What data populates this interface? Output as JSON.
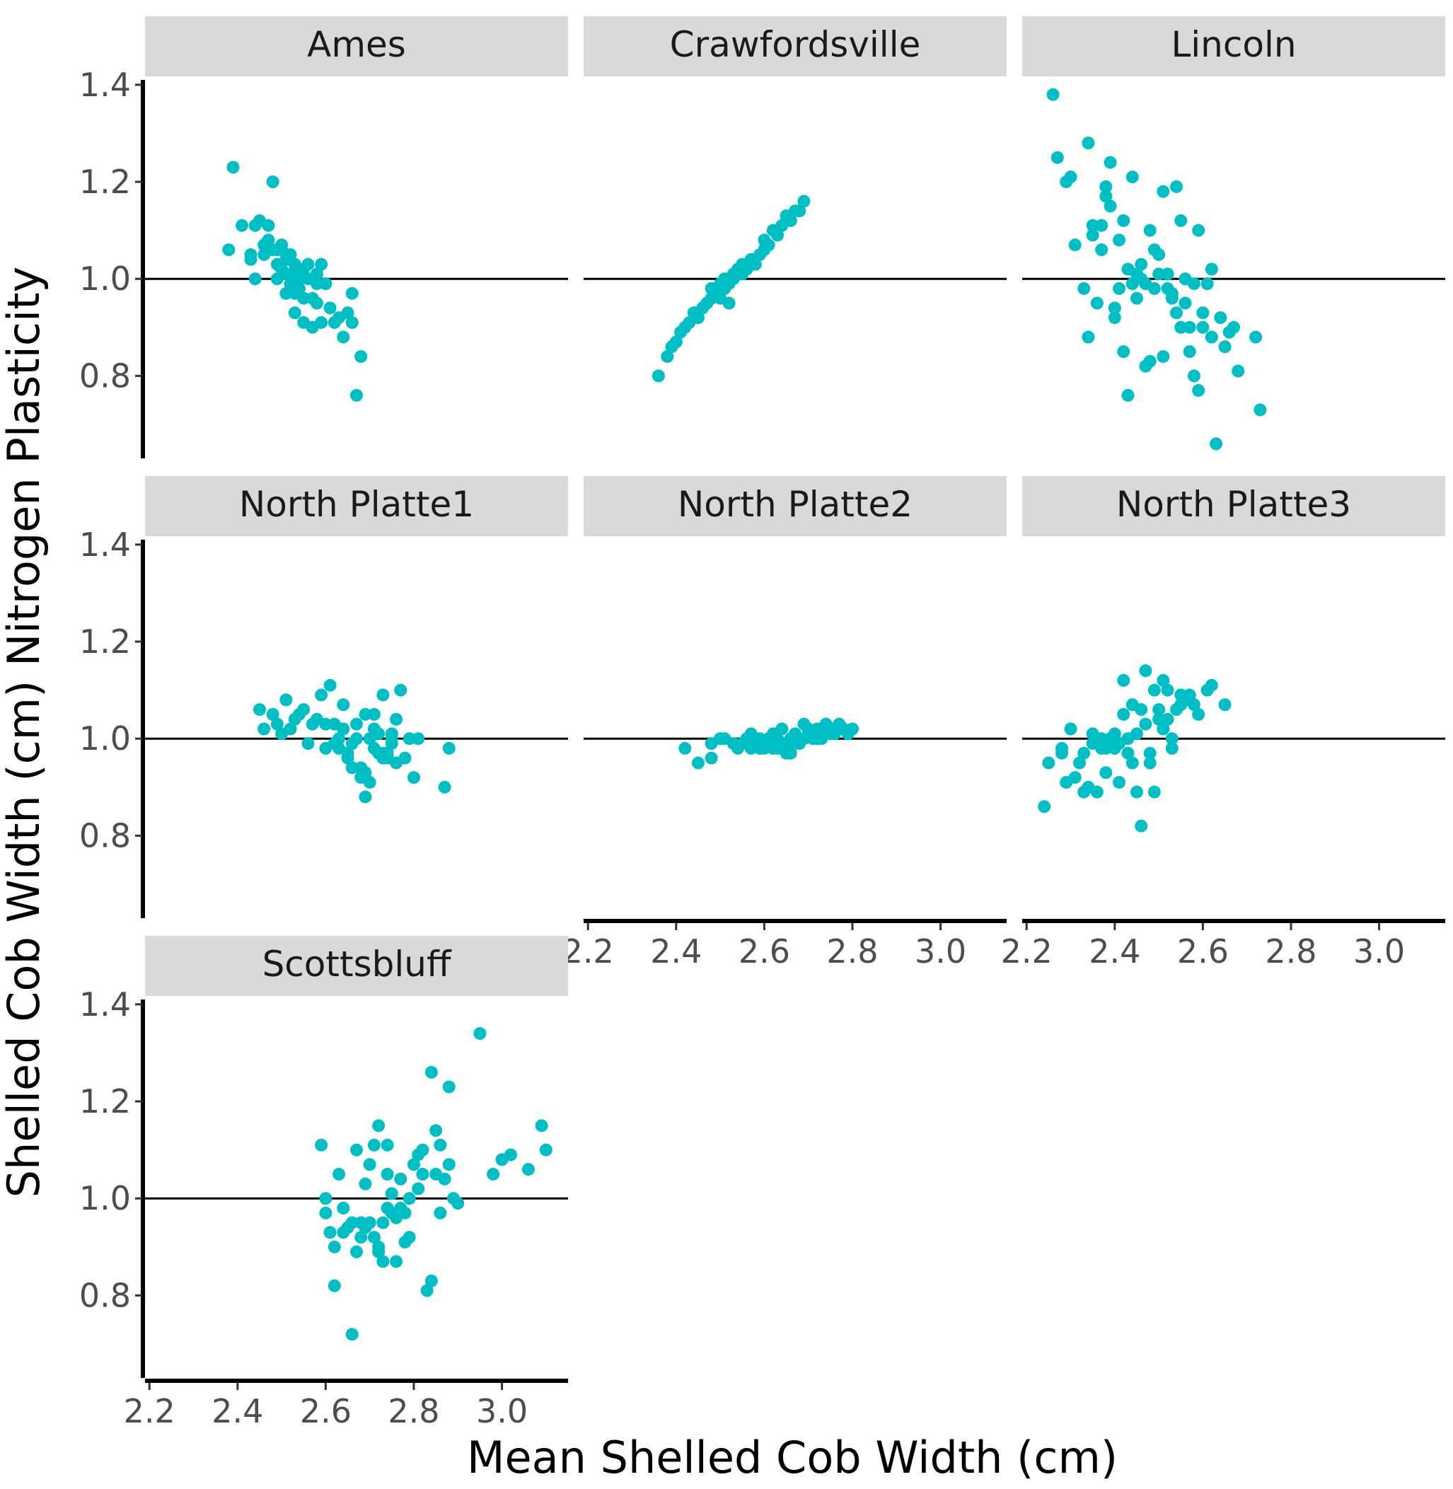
{
  "chart_data": {
    "type": "scatter",
    "xlabel": "Mean Shelled Cob Width (cm)",
    "ylabel": "Shelled Cob Width (cm) Nitrogen Plasticity",
    "xlim": [
      2.19,
      3.15
    ],
    "ylim": [
      0.63,
      1.41
    ],
    "x_ticks": [
      "2.2",
      "2.4",
      "2.6",
      "2.8",
      "3.0"
    ],
    "y_ticks": [
      "0.8",
      "1.0",
      "1.2",
      "1.4"
    ],
    "reference_line_y": 1.0,
    "point_color": "#00bfc4",
    "grid": false,
    "panels": [
      {
        "name": "Ames",
        "x": [
          2.38,
          2.39,
          2.41,
          2.43,
          2.43,
          2.44,
          2.44,
          2.45,
          2.46,
          2.46,
          2.47,
          2.47,
          2.48,
          2.48,
          2.49,
          2.49,
          2.49,
          2.5,
          2.5,
          2.5,
          2.51,
          2.51,
          2.51,
          2.52,
          2.52,
          2.52,
          2.53,
          2.53,
          2.53,
          2.54,
          2.54,
          2.54,
          2.55,
          2.55,
          2.55,
          2.56,
          2.56,
          2.57,
          2.57,
          2.58,
          2.58,
          2.58,
          2.59,
          2.59,
          2.6,
          2.61,
          2.62,
          2.63,
          2.64,
          2.65,
          2.66,
          2.66,
          2.67,
          2.68
        ],
        "y": [
          1.06,
          1.23,
          1.11,
          1.04,
          1.05,
          1.0,
          1.11,
          1.12,
          1.05,
          1.07,
          1.08,
          1.11,
          1.06,
          1.2,
          1.06,
          1.03,
          1.0,
          1.02,
          1.07,
          1.06,
          1.04,
          0.97,
          1.01,
          1.01,
          0.99,
          1.05,
          1.03,
          0.93,
          0.97,
          1.0,
          1.02,
          0.98,
          1.02,
          0.96,
          0.91,
          1.0,
          1.03,
          0.96,
          0.9,
          1.01,
          0.95,
          0.99,
          1.03,
          0.91,
          0.99,
          0.94,
          0.91,
          0.92,
          0.88,
          0.93,
          0.97,
          0.91,
          0.76,
          0.84
        ]
      },
      {
        "name": "Crawfordsville",
        "x": [
          2.36,
          2.38,
          2.39,
          2.4,
          2.41,
          2.42,
          2.43,
          2.44,
          2.45,
          2.46,
          2.47,
          2.48,
          2.48,
          2.49,
          2.5,
          2.5,
          2.51,
          2.51,
          2.52,
          2.52,
          2.53,
          2.53,
          2.54,
          2.55,
          2.55,
          2.56,
          2.57,
          2.58,
          2.59,
          2.6,
          2.6,
          2.61,
          2.62,
          2.63,
          2.64,
          2.65,
          2.66,
          2.67,
          2.68,
          2.69
        ],
        "y": [
          0.8,
          0.84,
          0.86,
          0.87,
          0.89,
          0.9,
          0.91,
          0.93,
          0.92,
          0.94,
          0.95,
          0.96,
          0.98,
          0.97,
          0.99,
          0.96,
          0.98,
          1.0,
          0.99,
          0.95,
          1.01,
          1.0,
          1.02,
          1.03,
          1.01,
          1.02,
          1.04,
          1.03,
          1.05,
          1.06,
          1.08,
          1.07,
          1.1,
          1.09,
          1.11,
          1.13,
          1.12,
          1.14,
          1.14,
          1.16
        ]
      },
      {
        "name": "Lincoln",
        "x": [
          2.26,
          2.27,
          2.29,
          2.3,
          2.31,
          2.33,
          2.34,
          2.34,
          2.35,
          2.35,
          2.36,
          2.37,
          2.37,
          2.38,
          2.38,
          2.39,
          2.39,
          2.4,
          2.4,
          2.41,
          2.41,
          2.42,
          2.42,
          2.43,
          2.43,
          2.44,
          2.44,
          2.45,
          2.45,
          2.46,
          2.46,
          2.47,
          2.47,
          2.48,
          2.48,
          2.49,
          2.49,
          2.5,
          2.5,
          2.51,
          2.51,
          2.52,
          2.52,
          2.53,
          2.53,
          2.54,
          2.54,
          2.55,
          2.55,
          2.56,
          2.56,
          2.57,
          2.57,
          2.58,
          2.58,
          2.59,
          2.59,
          2.6,
          2.6,
          2.61,
          2.62,
          2.62,
          2.63,
          2.64,
          2.65,
          2.66,
          2.67,
          2.68,
          2.72,
          2.73
        ],
        "y": [
          1.38,
          1.25,
          1.2,
          1.21,
          1.07,
          0.98,
          0.88,
          1.28,
          1.09,
          1.11,
          0.95,
          1.11,
          1.06,
          1.17,
          1.19,
          1.15,
          1.24,
          0.92,
          0.94,
          1.08,
          0.98,
          1.12,
          0.85,
          0.76,
          1.02,
          1.21,
          0.99,
          0.96,
          1.01,
          1.03,
          1.0,
          0.82,
          0.99,
          0.83,
          1.1,
          0.98,
          1.06,
          1.05,
          1.01,
          1.18,
          0.84,
          0.98,
          1.01,
          0.97,
          0.96,
          0.93,
          1.19,
          0.9,
          1.12,
          0.95,
          1.0,
          0.9,
          0.85,
          0.99,
          0.8,
          1.1,
          0.77,
          0.93,
          0.9,
          0.99,
          0.88,
          1.02,
          0.66,
          0.92,
          0.86,
          0.89,
          0.9,
          0.81,
          0.88,
          0.73
        ]
      },
      {
        "name": "North Platte1",
        "x": [
          2.45,
          2.46,
          2.48,
          2.49,
          2.5,
          2.51,
          2.52,
          2.53,
          2.54,
          2.55,
          2.56,
          2.57,
          2.58,
          2.59,
          2.6,
          2.61,
          2.62,
          2.63,
          2.64,
          2.65,
          2.66,
          2.67,
          2.68,
          2.69,
          2.7,
          2.71,
          2.72,
          2.73,
          2.74,
          2.75,
          2.76,
          2.77,
          2.78,
          2.79,
          2.62,
          2.64,
          2.66,
          2.68,
          2.7,
          2.72,
          2.74,
          2.76,
          2.67,
          2.69,
          2.71,
          2.73,
          2.75,
          2.6,
          2.63,
          2.65,
          2.69,
          2.71,
          2.73,
          2.75,
          2.8,
          2.81,
          2.87,
          2.88
        ],
        "y": [
          1.06,
          1.02,
          1.05,
          1.03,
          1.01,
          1.08,
          1.02,
          1.04,
          1.05,
          1.06,
          0.99,
          1.03,
          1.04,
          1.09,
          1.03,
          1.11,
          1.03,
          0.98,
          1.07,
          0.96,
          0.99,
          1.03,
          0.94,
          1.05,
          1.0,
          0.98,
          1.01,
          1.09,
          0.97,
          1.0,
          1.04,
          1.1,
          0.96,
          1.0,
          0.99,
          1.02,
          0.94,
          0.92,
          0.91,
          0.97,
          0.96,
          0.95,
          1.0,
          0.88,
          1.02,
          0.97,
          0.99,
          0.98,
          1.0,
          0.97,
          0.93,
          1.05,
          0.96,
          1.01,
          0.92,
          1.0,
          0.9,
          0.98
        ]
      },
      {
        "name": "North Platte2",
        "x": [
          2.42,
          2.45,
          2.48,
          2.48,
          2.5,
          2.51,
          2.53,
          2.54,
          2.55,
          2.56,
          2.57,
          2.58,
          2.59,
          2.6,
          2.61,
          2.62,
          2.63,
          2.64,
          2.65,
          2.66,
          2.67,
          2.68,
          2.69,
          2.7,
          2.71,
          2.72,
          2.73,
          2.74,
          2.75,
          2.76,
          2.77,
          2.78,
          2.79,
          2.8,
          2.57,
          2.59,
          2.61,
          2.63,
          2.65,
          2.67,
          2.69,
          2.71,
          2.73,
          2.6,
          2.62,
          2.64,
          2.66,
          2.68,
          2.7,
          2.72,
          2.74,
          2.76
        ],
        "y": [
          0.98,
          0.95,
          0.99,
          0.96,
          1.0,
          1.0,
          0.99,
          0.98,
          0.99,
          1.0,
          1.01,
          1.0,
          0.98,
          0.99,
          1.0,
          1.01,
          0.98,
          1.02,
          0.99,
          1.0,
          1.01,
          1.0,
          1.03,
          1.01,
          1.0,
          1.02,
          1.01,
          1.03,
          1.01,
          1.02,
          1.03,
          1.02,
          1.01,
          1.02,
          0.98,
          1.0,
          0.99,
          1.0,
          0.97,
          0.99,
          1.0,
          1.01,
          1.0,
          0.98,
          0.98,
          0.98,
          0.97,
          0.99,
          1.02,
          1.0,
          1.02,
          1.01
        ]
      },
      {
        "name": "North Platte3",
        "x": [
          2.24,
          2.25,
          2.28,
          2.28,
          2.29,
          2.3,
          2.31,
          2.32,
          2.33,
          2.33,
          2.34,
          2.35,
          2.35,
          2.36,
          2.37,
          2.37,
          2.38,
          2.38,
          2.39,
          2.39,
          2.4,
          2.4,
          2.41,
          2.41,
          2.42,
          2.42,
          2.43,
          2.43,
          2.44,
          2.44,
          2.45,
          2.45,
          2.46,
          2.46,
          2.47,
          2.47,
          2.48,
          2.48,
          2.49,
          2.49,
          2.5,
          2.5,
          2.51,
          2.51,
          2.52,
          2.52,
          2.53,
          2.53,
          2.54,
          2.55,
          2.55,
          2.56,
          2.57,
          2.58,
          2.59,
          2.61,
          2.62,
          2.65
        ],
        "y": [
          0.86,
          0.95,
          0.98,
          0.97,
          0.91,
          1.02,
          0.92,
          0.95,
          0.89,
          0.97,
          0.9,
          1.01,
          0.99,
          0.89,
          0.98,
          1.0,
          0.98,
          0.93,
          1.0,
          0.99,
          0.98,
          1.01,
          0.91,
          0.99,
          1.05,
          1.12,
          1.0,
          0.97,
          0.95,
          1.07,
          0.89,
          1.01,
          0.82,
          1.06,
          1.03,
          1.14,
          0.97,
          0.95,
          0.89,
          1.1,
          1.06,
          1.04,
          1.12,
          1.02,
          1.04,
          1.1,
          1.0,
          0.98,
          1.06,
          1.07,
          1.09,
          1.08,
          1.09,
          1.07,
          1.05,
          1.1,
          1.11,
          1.07
        ]
      },
      {
        "name": "Scottsbluff",
        "x": [
          2.59,
          2.6,
          2.6,
          2.61,
          2.62,
          2.63,
          2.64,
          2.64,
          2.65,
          2.66,
          2.66,
          2.67,
          2.67,
          2.68,
          2.69,
          2.69,
          2.7,
          2.7,
          2.71,
          2.71,
          2.72,
          2.72,
          2.73,
          2.73,
          2.74,
          2.74,
          2.75,
          2.75,
          2.76,
          2.76,
          2.77,
          2.77,
          2.78,
          2.78,
          2.79,
          2.79,
          2.8,
          2.81,
          2.81,
          2.82,
          2.82,
          2.83,
          2.84,
          2.84,
          2.85,
          2.85,
          2.86,
          2.87,
          2.88,
          2.88,
          2.89,
          2.9,
          2.95,
          2.98,
          3.0,
          3.02,
          3.06,
          3.09,
          3.1,
          2.62,
          2.68,
          2.72,
          2.74,
          2.86
        ],
        "y": [
          1.11,
          0.97,
          1.0,
          0.93,
          0.9,
          1.05,
          0.98,
          0.93,
          0.94,
          0.72,
          0.95,
          0.89,
          1.1,
          0.92,
          0.94,
          1.03,
          1.07,
          0.95,
          0.92,
          1.11,
          0.9,
          1.15,
          0.87,
          0.95,
          1.05,
          1.11,
          0.97,
          1.01,
          0.87,
          0.96,
          1.04,
          0.98,
          0.97,
          0.91,
          1.0,
          0.92,
          1.07,
          1.09,
          1.02,
          1.1,
          1.05,
          0.81,
          0.83,
          1.26,
          1.05,
          1.14,
          0.97,
          1.04,
          1.23,
          1.07,
          1.0,
          0.99,
          1.34,
          1.05,
          1.08,
          1.09,
          1.06,
          1.15,
          1.1,
          0.82,
          0.95,
          0.89,
          0.98,
          1.11
        ]
      }
    ]
  }
}
